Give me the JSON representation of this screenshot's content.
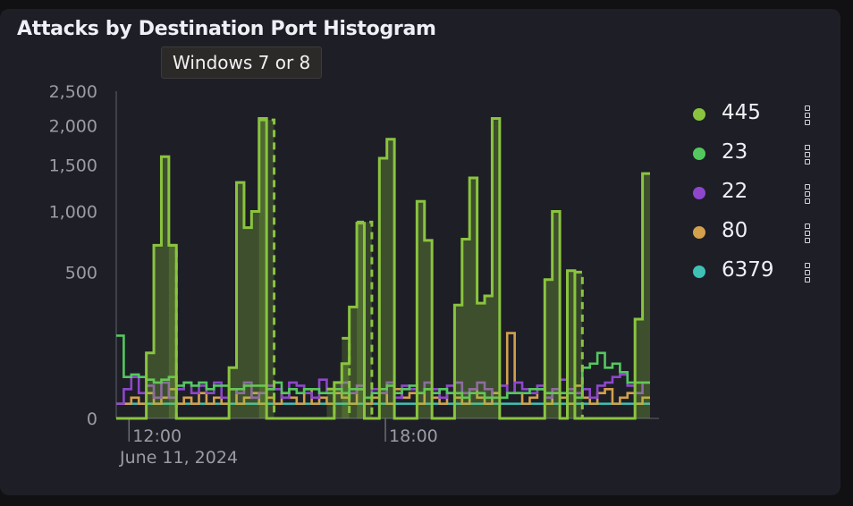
{
  "panel": {
    "title": "Attacks by Destination Port Histogram",
    "tooltip": "Windows 7 or 8"
  },
  "chart_data": {
    "type": "area",
    "title": "Attacks by Destination Port Histogram",
    "y_scale": "sqrt",
    "ylim": [
      0,
      2500
    ],
    "y_ticks": [
      "0",
      "500",
      "1,000",
      "1,500",
      "2,000",
      "2,500"
    ],
    "x_tick_labels": [
      "12:00",
      "18:00"
    ],
    "x_date_label": "June 11, 2024",
    "grid": false,
    "legend_position": "right",
    "series": [
      {
        "name": "445",
        "color": "#8ac43f",
        "values": [
          0,
          0,
          0,
          0,
          100,
          700,
          1600,
          700,
          0,
          0,
          0,
          0,
          0,
          0,
          0,
          60,
          1300,
          850,
          1000,
          2100,
          0,
          0,
          0,
          0,
          0,
          0,
          0,
          0,
          0,
          30,
          70,
          290,
          890,
          0,
          0,
          1580,
          1820,
          0,
          0,
          0,
          1100,
          740,
          0,
          0,
          0,
          300,
          750,
          1350,
          310,
          350,
          2100,
          0,
          0,
          0,
          0,
          0,
          0,
          450,
          1000,
          0,
          510,
          0,
          0,
          0,
          0,
          0,
          0,
          0,
          0,
          230,
          1400
        ],
        "dashed_levels": [
          {
            "start": 7,
            "value": 700,
            "end": 8
          },
          {
            "start": 19,
            "value": 2080,
            "end": 21
          },
          {
            "start": 28,
            "value": 20,
            "end": 29
          },
          {
            "start": 30,
            "value": 150,
            "end": 31
          },
          {
            "start": 32,
            "value": 900,
            "end": 34
          },
          {
            "start": 61,
            "value": 500,
            "end": 62
          }
        ]
      },
      {
        "name": "23",
        "color": "#54c85f",
        "values": [
          160,
          40,
          45,
          40,
          35,
          30,
          35,
          40,
          25,
          30,
          25,
          30,
          20,
          25,
          25,
          20,
          20,
          25,
          25,
          25,
          20,
          30,
          15,
          20,
          15,
          20,
          20,
          15,
          15,
          20,
          15,
          20,
          20,
          10,
          15,
          20,
          25,
          15,
          20,
          25,
          15,
          20,
          15,
          20,
          15,
          15,
          10,
          15,
          15,
          10,
          10,
          10,
          15,
          15,
          15,
          20,
          20,
          15,
          15,
          15,
          15,
          10,
          60,
          70,
          100,
          60,
          70,
          50,
          30,
          30,
          30
        ]
      },
      {
        "name": "22",
        "color": "#8e47cc",
        "values": [
          5,
          20,
          40,
          15,
          25,
          10,
          30,
          10,
          20,
          30,
          15,
          25,
          15,
          30,
          10,
          20,
          15,
          30,
          10,
          15,
          25,
          20,
          10,
          30,
          25,
          15,
          10,
          35,
          15,
          20,
          30,
          15,
          25,
          10,
          20,
          15,
          30,
          10,
          25,
          20,
          15,
          30,
          20,
          10,
          25,
          30,
          15,
          20,
          30,
          20,
          10,
          25,
          15,
          30,
          20,
          15,
          25,
          10,
          20,
          35,
          20,
          15,
          20,
          10,
          25,
          30,
          40,
          45,
          25,
          15,
          30
        ]
      },
      {
        "name": "80",
        "color": "#d3a14c",
        "values": [
          5,
          5,
          10,
          5,
          15,
          5,
          10,
          20,
          5,
          10,
          5,
          15,
          5,
          10,
          5,
          20,
          5,
          10,
          15,
          5,
          10,
          5,
          15,
          10,
          5,
          20,
          5,
          10,
          5,
          15,
          10,
          5,
          20,
          5,
          10,
          15,
          5,
          20,
          10,
          15,
          5,
          20,
          10,
          5,
          15,
          10,
          5,
          20,
          10,
          5,
          15,
          10,
          170,
          15,
          5,
          10,
          20,
          5,
          15,
          10,
          5,
          25,
          10,
          5,
          15,
          20,
          5,
          10,
          15,
          5,
          10
        ]
      },
      {
        "name": "6379",
        "color": "#40c1b5",
        "values": [
          5,
          5,
          5,
          5,
          5,
          5,
          5,
          5,
          5,
          5,
          5,
          5,
          5,
          5,
          5,
          5,
          5,
          5,
          5,
          5,
          5,
          5,
          5,
          5,
          5,
          5,
          5,
          5,
          5,
          5,
          5,
          5,
          5,
          5,
          5,
          5,
          5,
          5,
          5,
          5,
          5,
          5,
          5,
          5,
          5,
          5,
          5,
          5,
          5,
          5,
          5,
          5,
          5,
          5,
          5,
          5,
          5,
          5,
          5,
          5,
          5,
          5,
          5,
          5,
          5,
          5,
          5,
          5,
          5,
          5,
          5
        ]
      }
    ]
  }
}
